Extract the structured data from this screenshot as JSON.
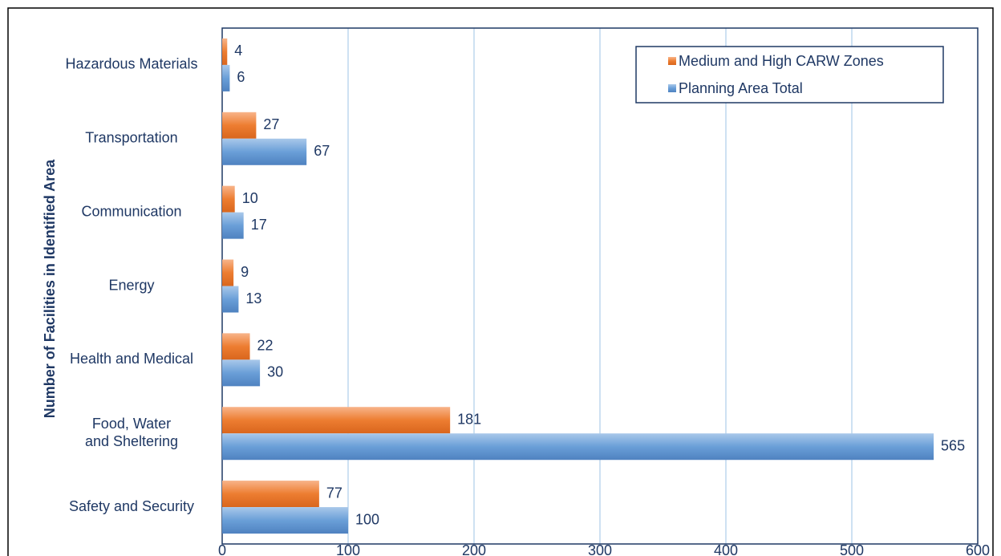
{
  "chart_data": {
    "type": "bar",
    "orientation": "horizontal",
    "title": "",
    "xlabel": "",
    "ylabel": "Number of Facilities in Identified Area",
    "categories": [
      "Hazardous Materials",
      "Transportation",
      "Communication",
      "Energy",
      "Health and Medical",
      "Food, Water and Sheltering",
      "Safety and Security"
    ],
    "series": [
      {
        "name": "Medium and High CARW Zones",
        "color": "#ed7d31",
        "values": [
          4,
          27,
          10,
          9,
          22,
          181,
          77
        ]
      },
      {
        "name": "Planning Area Total",
        "color": "#5b9bd5",
        "values": [
          6,
          67,
          17,
          13,
          30,
          565,
          100
        ]
      }
    ],
    "xlim": [
      0,
      600
    ],
    "xticks": [
      0,
      100,
      200,
      300,
      400,
      500,
      600
    ],
    "grid": "vertical",
    "legend_position": "top-right",
    "data_labels": true
  }
}
